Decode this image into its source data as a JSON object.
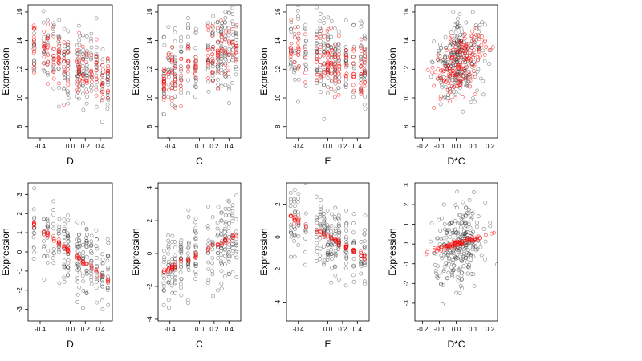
{
  "colors": {
    "observed": "#333333",
    "fitted": "#ff0000",
    "frame": "#000000"
  },
  "chart_data": [
    {
      "type": "scatter",
      "panel": "top-D",
      "xlabel": "D",
      "ylabel": "Expression",
      "xlim": [
        -0.56,
        0.56
      ],
      "ylim": [
        7.2,
        16.5
      ],
      "xticks": [
        -0.4,
        0.0,
        0.2,
        0.4
      ],
      "xtick_labels": [
        "-0.4",
        "0.0",
        "0.2",
        "0.4"
      ],
      "yticks": [
        8,
        10,
        12,
        14,
        16
      ],
      "ytick_labels": [
        "8",
        "10",
        "12",
        "14",
        "16"
      ],
      "cluster_x": [
        -0.48,
        -0.35,
        -0.3,
        -0.22,
        -0.15,
        -0.08,
        -0.03,
        0.1,
        0.12,
        0.17,
        0.22,
        0.28,
        0.35,
        0.43,
        0.5
      ],
      "series": [
        {
          "role": "observed",
          "seed": 11,
          "mode": "linear",
          "intercept": 12.5,
          "slope": -2.2,
          "sd": 1.4,
          "n": 210
        },
        {
          "role": "fitted",
          "seed": 12,
          "mode": "linear",
          "intercept": 12.4,
          "slope": -2.6,
          "sd": 1.0,
          "n": 150
        }
      ]
    },
    {
      "type": "scatter",
      "panel": "top-C",
      "xlabel": "C",
      "ylabel": "Expression",
      "xlim": [
        -0.56,
        0.56
      ],
      "ylim": [
        7.2,
        16.5
      ],
      "xticks": [
        -0.4,
        0.0,
        0.2,
        0.4
      ],
      "xtick_labels": [
        "-0.4",
        "0.0",
        "0.2",
        "0.4"
      ],
      "yticks": [
        8,
        10,
        12,
        14,
        16
      ],
      "ytick_labels": [
        "8",
        "10",
        "12",
        "14",
        "16"
      ],
      "cluster_x": [
        -0.48,
        -0.42,
        -0.37,
        -0.33,
        -0.25,
        -0.15,
        -0.05,
        0.12,
        0.18,
        0.25,
        0.3,
        0.35,
        0.4,
        0.45,
        0.5
      ],
      "series": [
        {
          "role": "observed",
          "seed": 21,
          "mode": "linear",
          "intercept": 12.6,
          "slope": 2.0,
          "sd": 1.5,
          "n": 230
        },
        {
          "role": "fitted",
          "seed": 22,
          "mode": "linear",
          "intercept": 12.5,
          "slope": 2.3,
          "sd": 0.9,
          "n": 140
        }
      ]
    },
    {
      "type": "scatter",
      "panel": "top-E",
      "xlabel": "E",
      "ylabel": "Expression",
      "xlim": [
        -0.56,
        0.56
      ],
      "ylim": [
        7.2,
        16.5
      ],
      "xticks": [
        -0.4,
        0.0,
        0.2,
        0.4
      ],
      "xtick_labels": [
        "-0.4",
        "0.0",
        "0.2",
        "0.4"
      ],
      "yticks": [
        8,
        10,
        12,
        14,
        16
      ],
      "ytick_labels": [
        "8",
        "10",
        "12",
        "14",
        "16"
      ],
      "cluster_x": [
        -0.5,
        -0.45,
        -0.4,
        -0.3,
        -0.15,
        -0.1,
        -0.05,
        0.0,
        0.05,
        0.1,
        0.15,
        0.25,
        0.35,
        0.45,
        0.5
      ],
      "series": [
        {
          "role": "observed",
          "seed": 31,
          "mode": "linear",
          "intercept": 12.8,
          "slope": -1.6,
          "sd": 1.5,
          "n": 220
        },
        {
          "role": "fitted",
          "seed": 32,
          "mode": "linear",
          "intercept": 12.6,
          "slope": -1.2,
          "sd": 1.0,
          "n": 150
        }
      ]
    },
    {
      "type": "scatter",
      "panel": "top-DC",
      "xlabel": "D*C",
      "ylabel": "Expression",
      "xlim": [
        -0.245,
        0.245
      ],
      "ylim": [
        7.2,
        16.5
      ],
      "xticks": [
        -0.2,
        -0.1,
        0.0,
        0.1,
        0.2
      ],
      "xtick_labels": [
        "-0.2",
        "-0.1",
        "0.0",
        "0.1",
        "0.2"
      ],
      "yticks": [
        8,
        10,
        12,
        14,
        16
      ],
      "ytick_labels": [
        "8",
        "10",
        "12",
        "14",
        "16"
      ],
      "series": [
        {
          "role": "observed",
          "seed": 41,
          "mode": "normal",
          "xmean": 0.02,
          "xsd": 0.07,
          "intercept": 12.6,
          "slope": 4.0,
          "sd": 1.3,
          "n": 260
        },
        {
          "role": "fitted",
          "seed": 42,
          "mode": "normal",
          "xmean": 0.02,
          "xsd": 0.08,
          "intercept": 12.3,
          "slope": 8.0,
          "sd": 1.1,
          "n": 170
        }
      ]
    },
    {
      "type": "scatter",
      "panel": "bottom-D",
      "xlabel": "D",
      "ylabel": "Expression",
      "xlim": [
        -0.56,
        0.56
      ],
      "ylim": [
        -3.6,
        3.6
      ],
      "xticks": [
        -0.4,
        0.0,
        0.2,
        0.4
      ],
      "xtick_labels": [
        "-0.4",
        "0.0",
        "0.2",
        "0.4"
      ],
      "yticks": [
        -3,
        -2,
        -1,
        0,
        1,
        2,
        3
      ],
      "ytick_labels": [
        "-3",
        "-2",
        "-1",
        "0",
        "1",
        "2",
        "3"
      ],
      "cluster_x": [
        -0.48,
        -0.35,
        -0.3,
        -0.22,
        -0.15,
        -0.08,
        -0.03,
        0.1,
        0.12,
        0.17,
        0.22,
        0.28,
        0.35,
        0.43,
        0.5
      ],
      "series": [
        {
          "role": "observed",
          "seed": 51,
          "mode": "linear",
          "intercept": 0.0,
          "slope": -3.0,
          "sd": 1.0,
          "n": 230
        },
        {
          "role": "fitted",
          "seed": 52,
          "mode": "linear",
          "intercept": 0.0,
          "slope": -3.0,
          "sd": 0.08,
          "n": 70
        }
      ]
    },
    {
      "type": "scatter",
      "panel": "bottom-C",
      "xlabel": "C",
      "ylabel": "Expression",
      "xlim": [
        -0.56,
        0.56
      ],
      "ylim": [
        -4.1,
        4.3
      ],
      "xticks": [
        -0.4,
        0.0,
        0.2,
        0.4
      ],
      "xtick_labels": [
        "-0.4",
        "0.0",
        "0.2",
        "0.4"
      ],
      "yticks": [
        -4,
        -2,
        0,
        2,
        4
      ],
      "ytick_labels": [
        "-4",
        "-2",
        "0",
        "2",
        "4"
      ],
      "cluster_x": [
        -0.48,
        -0.42,
        -0.37,
        -0.33,
        -0.25,
        -0.15,
        -0.05,
        0.12,
        0.18,
        0.25,
        0.3,
        0.35,
        0.4,
        0.45,
        0.5
      ],
      "series": [
        {
          "role": "observed",
          "seed": 61,
          "mode": "linear",
          "intercept": 0.0,
          "slope": 2.3,
          "sd": 1.2,
          "n": 240
        },
        {
          "role": "fitted",
          "seed": 62,
          "mode": "linear",
          "intercept": 0.0,
          "slope": 2.3,
          "sd": 0.08,
          "n": 60
        }
      ]
    },
    {
      "type": "scatter",
      "panel": "bottom-E",
      "xlabel": "E",
      "ylabel": "Expression",
      "xlim": [
        -0.56,
        0.56
      ],
      "ylim": [
        -5.1,
        3.3
      ],
      "xticks": [
        -0.4,
        0.0,
        0.2,
        0.4
      ],
      "xtick_labels": [
        "-0.4",
        "0.0",
        "0.2",
        "0.4"
      ],
      "yticks": [
        -4,
        -2,
        0,
        2
      ],
      "ytick_labels": [
        "-4",
        "-2",
        "0",
        "2"
      ],
      "cluster_x": [
        -0.5,
        -0.45,
        -0.4,
        -0.3,
        -0.15,
        -0.1,
        -0.05,
        0.0,
        0.05,
        0.1,
        0.15,
        0.25,
        0.35,
        0.45,
        0.5
      ],
      "series": [
        {
          "role": "observed",
          "seed": 71,
          "mode": "linear",
          "intercept": 0.0,
          "slope": -2.4,
          "sd": 1.1,
          "n": 230
        },
        {
          "role": "fitted",
          "seed": 72,
          "mode": "linear",
          "intercept": 0.0,
          "slope": -2.4,
          "sd": 0.08,
          "n": 75
        }
      ]
    },
    {
      "type": "scatter",
      "panel": "bottom-DC",
      "xlabel": "D*C",
      "ylabel": "Expression",
      "xlim": [
        -0.245,
        0.245
      ],
      "ylim": [
        -3.9,
        3.1
      ],
      "xticks": [
        -0.2,
        -0.1,
        0.0,
        0.1,
        0.2
      ],
      "xtick_labels": [
        "-0.2",
        "-0.1",
        "0.0",
        "0.1",
        "0.2"
      ],
      "yticks": [
        -3,
        -2,
        -1,
        0,
        1,
        2,
        3
      ],
      "ytick_labels": [
        "-3",
        "-2",
        "-1",
        "0",
        "1",
        "2",
        "3"
      ],
      "series": [
        {
          "role": "observed",
          "seed": 81,
          "mode": "normal",
          "xmean": 0.02,
          "xsd": 0.07,
          "intercept": 0.0,
          "slope": 2.5,
          "sd": 1.0,
          "n": 270
        },
        {
          "role": "fitted",
          "seed": 82,
          "mode": "normal",
          "xmean": 0.02,
          "xsd": 0.08,
          "intercept": 0.0,
          "slope": 2.5,
          "sd": 0.06,
          "n": 80
        }
      ]
    }
  ]
}
